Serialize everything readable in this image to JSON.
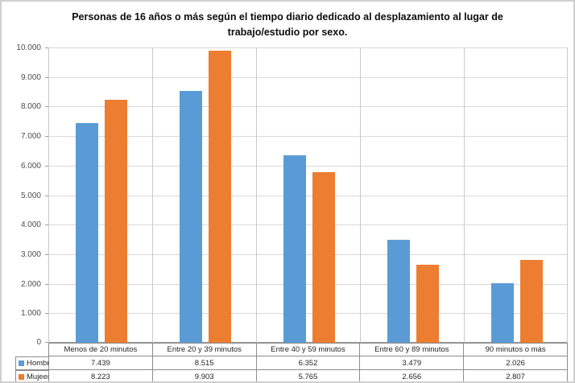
{
  "chart_data": {
    "type": "bar",
    "title": "Personas de 16 años o más según el tiempo diario dedicado al desplazamiento al lugar de trabajo/estudio por sexo.",
    "xlabel": "",
    "ylabel": "",
    "categories": [
      "Menos de 20 minutos",
      "Entre 20 y 39 minutos",
      "Entre 40 y 59 minutos",
      "Entre 60 y 89 minutos",
      "90 minutos o más"
    ],
    "series": [
      {
        "name": "Hombre",
        "color": "#5B9BD5",
        "values": [
          7439,
          8515,
          6352,
          3479,
          2026
        ],
        "display_values": [
          "7.439",
          "8.515",
          "6.352",
          "3.479",
          "2.026"
        ]
      },
      {
        "name": "Mujeer",
        "color": "#ED7D31",
        "values": [
          8223,
          9903,
          5765,
          2656,
          2807
        ],
        "display_values": [
          "8.223",
          "9.903",
          "5.765",
          "2.656",
          "2.807"
        ]
      }
    ],
    "ylim": [
      0,
      10000
    ],
    "ytick_step": 1000,
    "ytick_labels": [
      "0",
      "1.000",
      "2.000",
      "3.000",
      "4.000",
      "5.000",
      "6.000",
      "7.000",
      "8.000",
      "9.000",
      "10.000"
    ],
    "grid": true,
    "legend_position": "data-table-left"
  },
  "colors": {
    "gridline": "#d9d9d9",
    "separator": "#c9c9c9",
    "axis": "#9a9a9a",
    "table_border": "#8c8c8c",
    "background": "#ffffff",
    "chart_border": "#cfcfcf"
  }
}
